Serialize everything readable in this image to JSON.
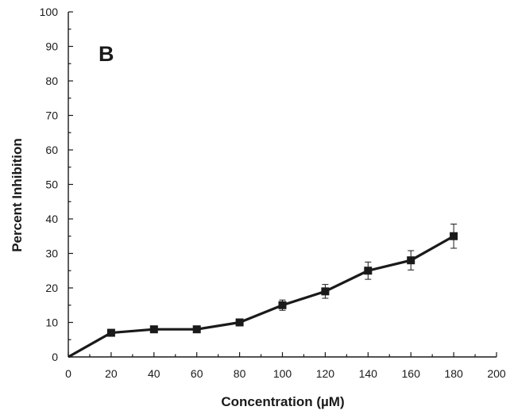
{
  "chart_data": {
    "type": "line",
    "panel_label": "B",
    "xlabel": "Concentration (µM)",
    "ylabel": "Percent Inhibition",
    "xlim": [
      0,
      200
    ],
    "ylim": [
      0,
      100
    ],
    "x_ticks": [
      0,
      20,
      40,
      60,
      80,
      100,
      120,
      140,
      160,
      180,
      200
    ],
    "y_ticks": [
      0,
      10,
      20,
      30,
      40,
      50,
      60,
      70,
      80,
      90,
      100
    ],
    "grid": false,
    "legend": "none",
    "series": [
      {
        "x": [
          0,
          20,
          40,
          60,
          80,
          100,
          120,
          140,
          160,
          180
        ],
        "y": [
          0,
          7,
          8,
          8,
          10,
          15,
          19,
          25,
          28,
          35
        ],
        "error": [
          0,
          0.5,
          0.5,
          0.5,
          0.5,
          1.5,
          2,
          2.5,
          2.8,
          3.5
        ],
        "marker": "square",
        "color": "#1a1a1a"
      }
    ]
  }
}
